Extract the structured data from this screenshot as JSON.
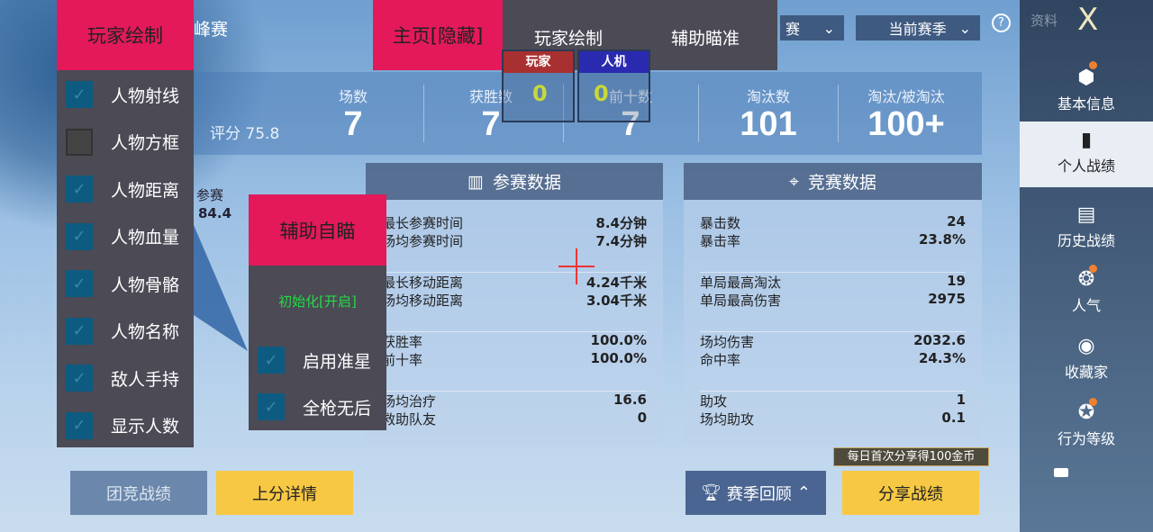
{
  "header": {
    "mode_partial": "峰赛",
    "home_tab": "主页[隐藏]",
    "tabs": [
      "玩家绘制",
      "辅助瞄准"
    ],
    "mode_dropdown": "赛",
    "season_dropdown": "当前赛季",
    "help": "?",
    "profile_label": "资料",
    "close": "X"
  },
  "counters": [
    {
      "label": "玩家",
      "value": "0",
      "color": "#a83030"
    },
    {
      "label": "人机",
      "value": "0",
      "color": "#2a2ab0"
    }
  ],
  "stats": {
    "rating_label": "评分 75.8",
    "items": [
      {
        "label": "场数",
        "value": "7"
      },
      {
        "label": "获胜数",
        "value": "7"
      },
      {
        "label": "前十数",
        "value": "7"
      },
      {
        "label": "淘汰数",
        "value": "101"
      },
      {
        "label": "淘汰/被淘汰",
        "value": "100+"
      }
    ]
  },
  "radar": {
    "label": "参赛",
    "value": "84.4"
  },
  "player_draw": {
    "title": "玩家绘制",
    "items": [
      {
        "label": "人物射线",
        "checked": true
      },
      {
        "label": "人物方框",
        "checked": false
      },
      {
        "label": "人物距离",
        "checked": true
      },
      {
        "label": "人物血量",
        "checked": true
      },
      {
        "label": "人物骨骼",
        "checked": true
      },
      {
        "label": "人物名称",
        "checked": true
      },
      {
        "label": "敌人手持",
        "checked": true
      },
      {
        "label": "显示人数",
        "checked": true
      }
    ]
  },
  "aimbot": {
    "title": "辅助自瞄",
    "status": "初始化[开启]",
    "items": [
      {
        "label": "启用准星",
        "checked": true
      },
      {
        "label": "全枪无后",
        "checked": true
      }
    ]
  },
  "participation": {
    "title": "参赛数据",
    "groups": [
      [
        [
          "最长参赛时间",
          "8.4分钟"
        ],
        [
          "场均参赛时间",
          "7.4分钟"
        ]
      ],
      [
        [
          "最长移动距离",
          "4.24千米"
        ],
        [
          "场均移动距离",
          "3.04千米"
        ]
      ],
      [
        [
          "获胜率",
          "100.0%"
        ],
        [
          "前十率",
          "100.0%"
        ]
      ],
      [
        [
          "场均治疗",
          "16.6"
        ],
        [
          "救助队友",
          "0"
        ]
      ]
    ]
  },
  "competition": {
    "title": "竞赛数据",
    "groups": [
      [
        [
          "暴击数",
          "24"
        ],
        [
          "暴击率",
          "23.8%"
        ]
      ],
      [
        [
          "单局最高淘汰",
          "19"
        ],
        [
          "单局最高伤害",
          "2975"
        ]
      ],
      [
        [
          "场均伤害",
          "2032.6"
        ],
        [
          "命中率",
          "24.3%"
        ]
      ],
      [
        [
          "助攻",
          "1"
        ],
        [
          "场均助攻",
          "0.1"
        ]
      ]
    ]
  },
  "sidebar": [
    {
      "label": "基本信息",
      "icon": "profile-icon",
      "dot": true
    },
    {
      "label": "个人战绩",
      "icon": "chart-icon",
      "active": true
    },
    {
      "label": "历史战绩",
      "icon": "document-icon"
    },
    {
      "label": "人气",
      "icon": "popularity-icon",
      "dot": true
    },
    {
      "label": "收藏家",
      "icon": "collector-icon"
    },
    {
      "label": "行为等级",
      "icon": "behavior-icon",
      "dot": true
    }
  ],
  "bottom": {
    "team": "团竞战绩",
    "rank": "上分详情",
    "season_review": "赛季回顾",
    "share": "分享战绩",
    "share_tip": "每日首次分享得100金币"
  },
  "colors": {
    "accent_pink": "#e3195a",
    "check_blue": "#0d5b80",
    "yellow": "#f7c843",
    "green_status": "#22dd44"
  }
}
